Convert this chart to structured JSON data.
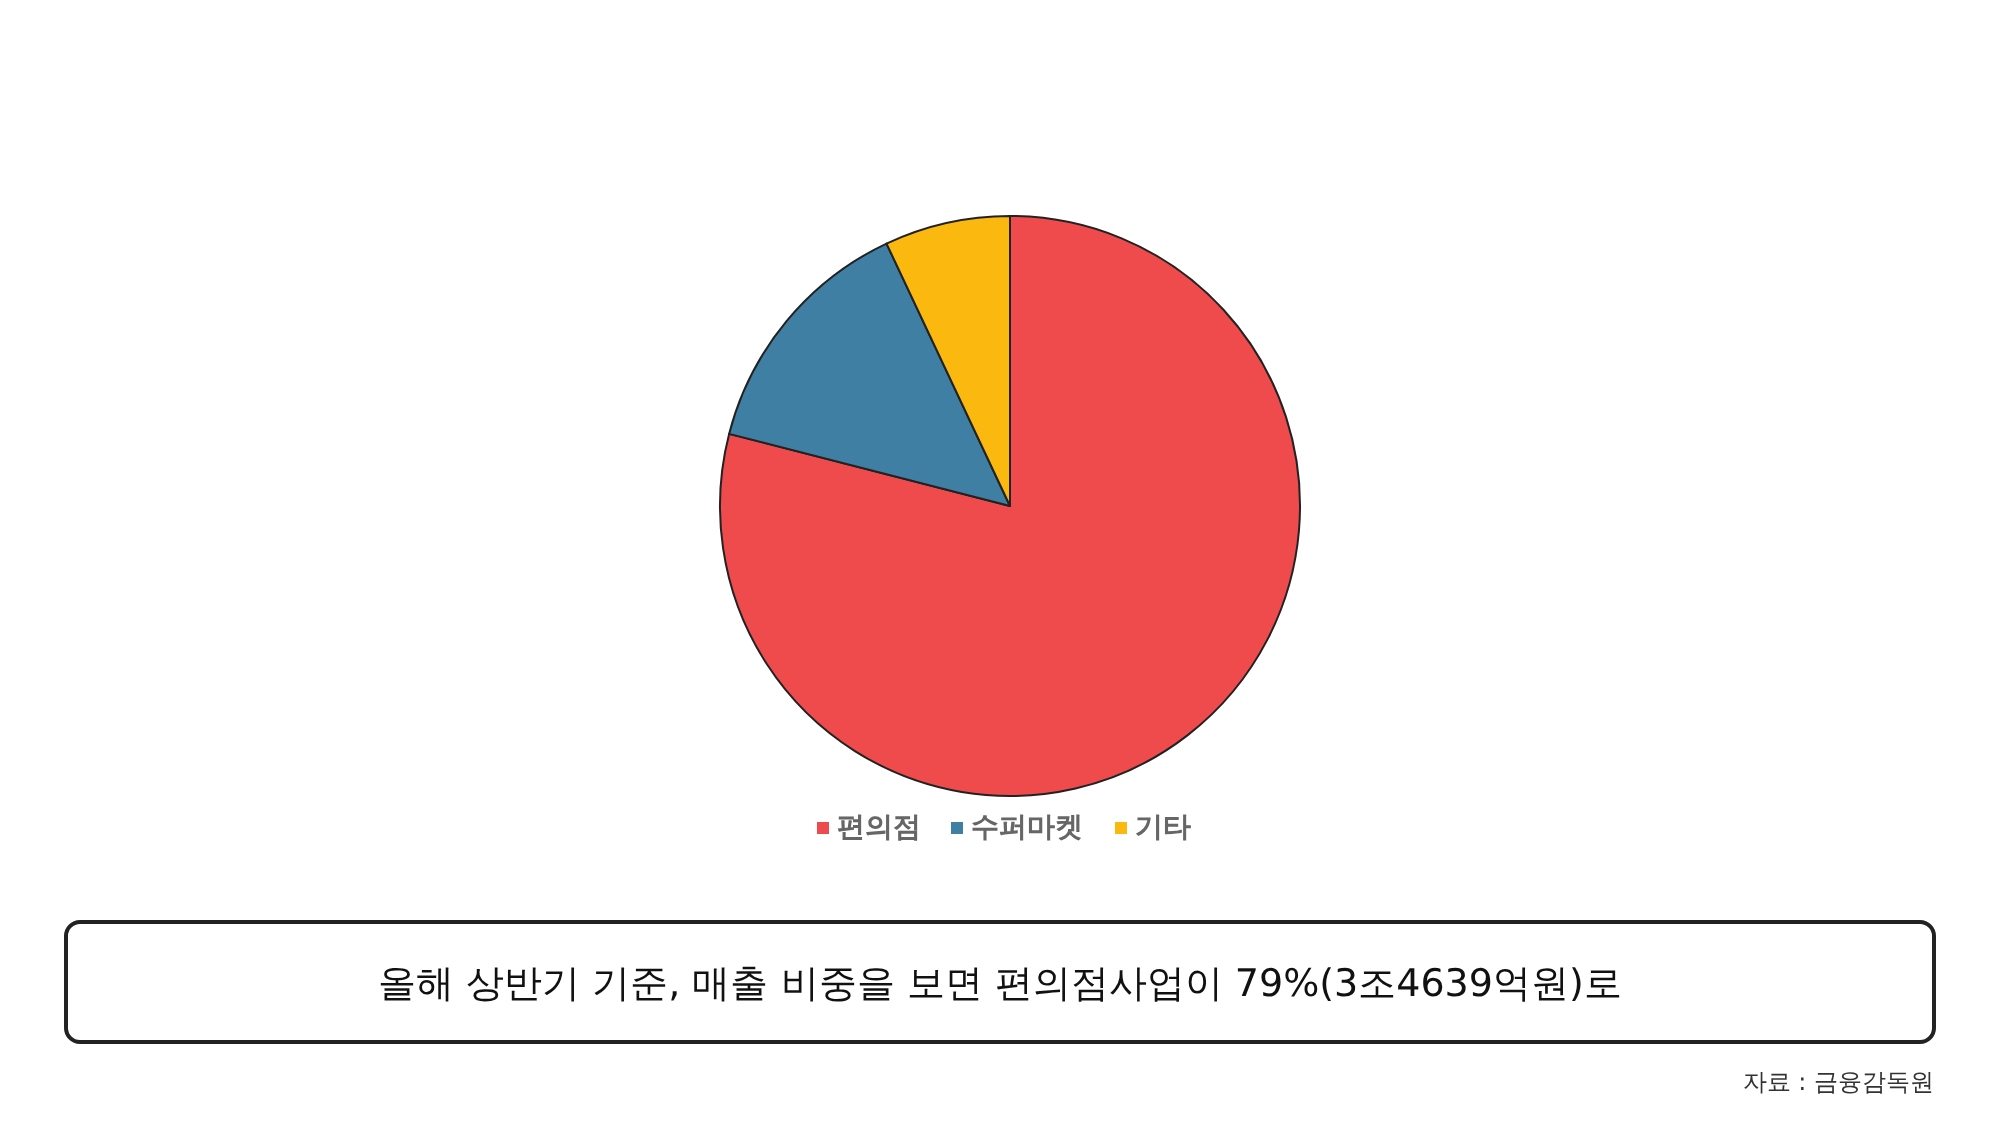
{
  "chart_data": {
    "type": "pie",
    "categories": [
      "편의점",
      "수퍼마켓",
      "기타"
    ],
    "values": [
      79,
      14,
      7
    ],
    "colors": [
      "#ef4b4d",
      "#3e7fa3",
      "#fbb80f"
    ],
    "legend": "bottom",
    "annotations": [
      "올해 상반기 기준, 매출 비중을 보면 편의점사업이 79%(3조4639억원)로",
      "자료 : 금융감독원"
    ]
  }
}
